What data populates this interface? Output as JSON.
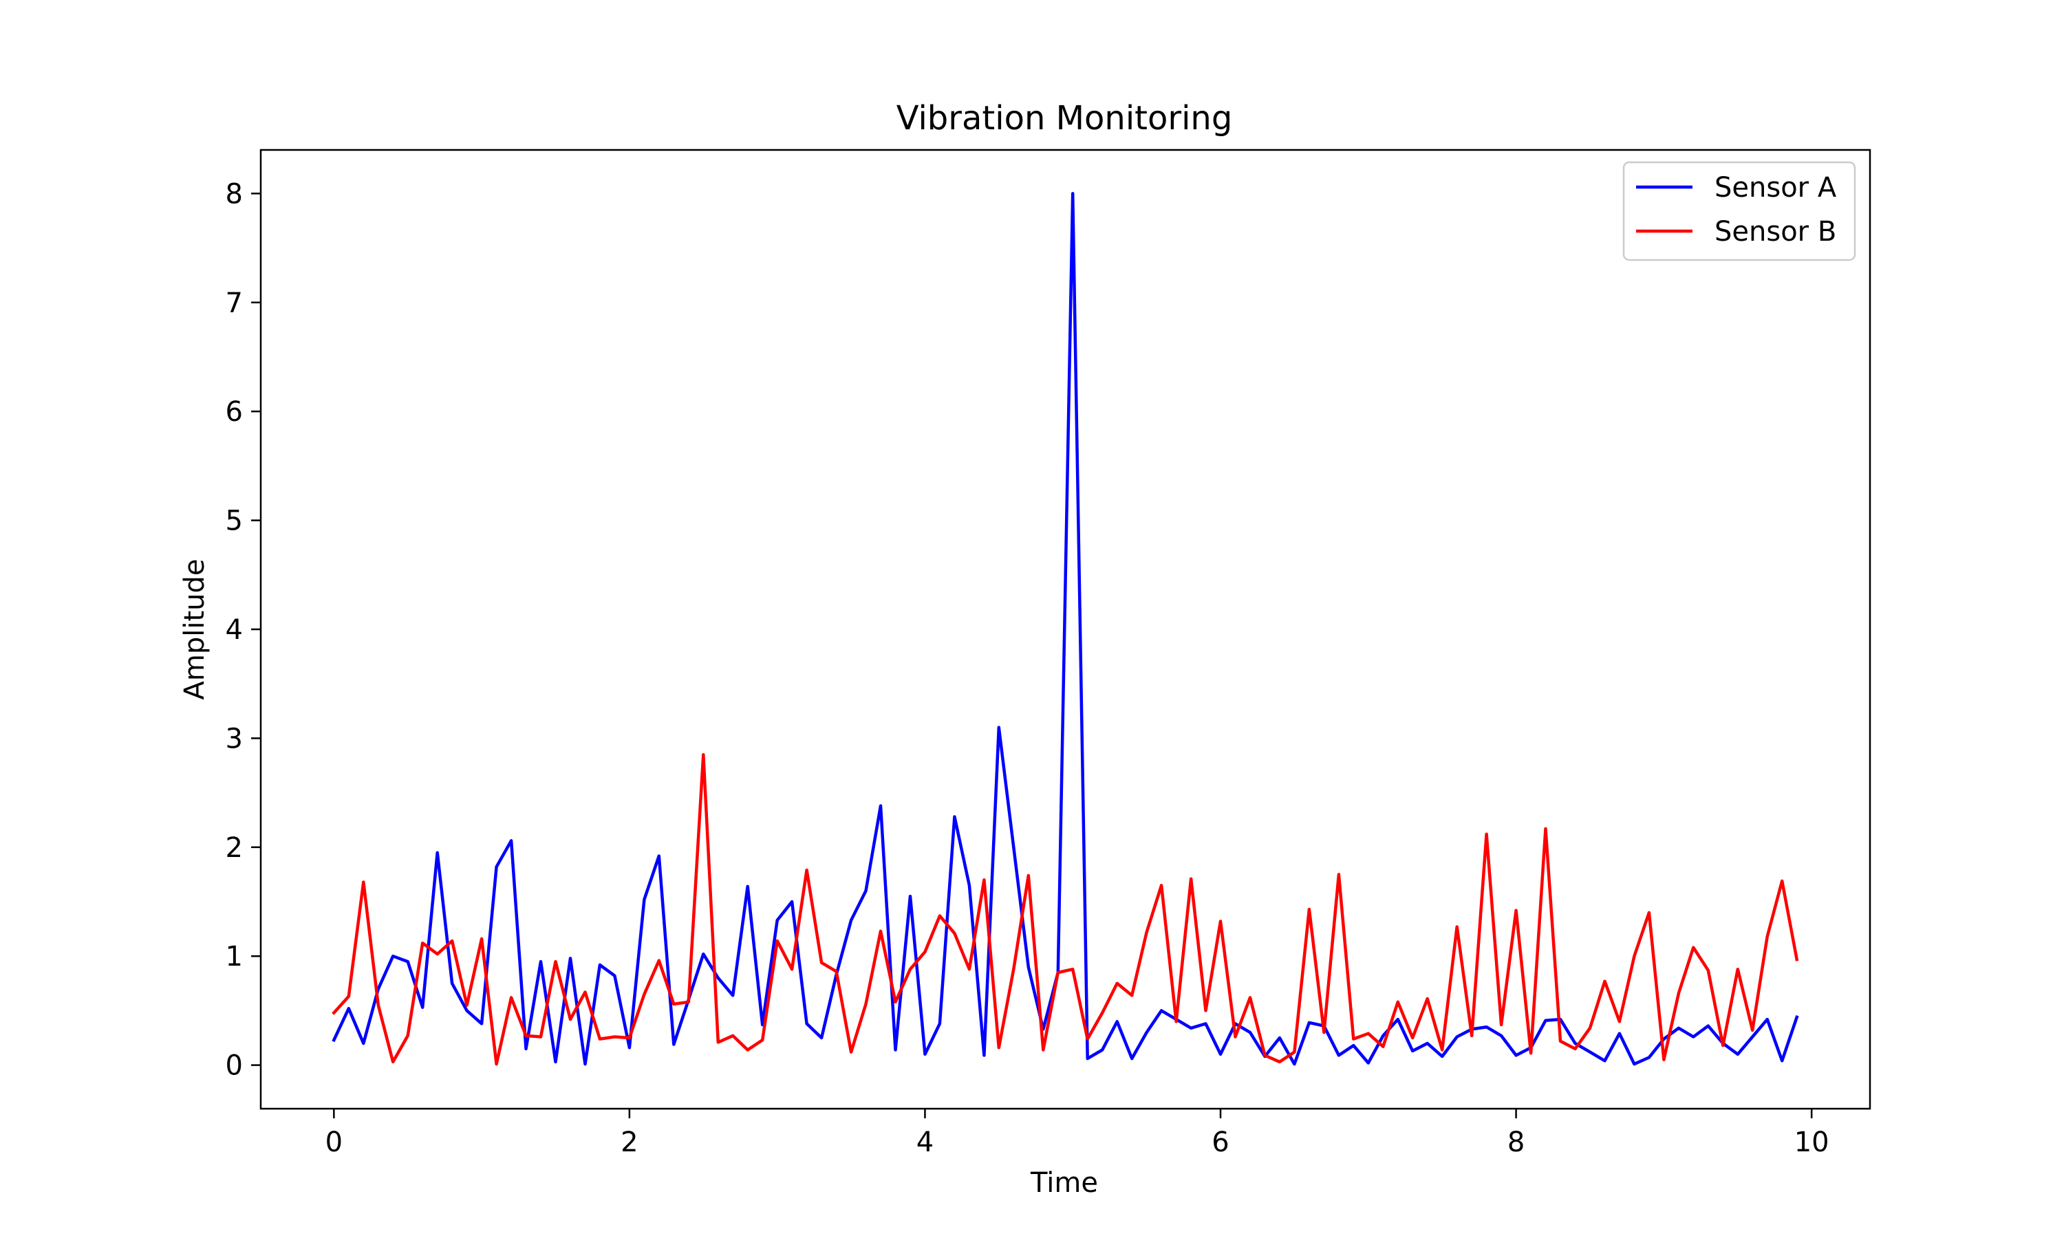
{
  "chart_data": {
    "type": "line",
    "title": "Vibration Monitoring",
    "xlabel": "Time",
    "ylabel": "Amplitude",
    "xlim": [
      -0.495,
      10.395
    ],
    "ylim": [
      -0.4,
      8.4
    ],
    "xticks": [
      0,
      2,
      4,
      6,
      8,
      10
    ],
    "yticks": [
      0,
      1,
      2,
      3,
      4,
      5,
      6,
      7,
      8
    ],
    "grid": false,
    "legend_position": "top-right",
    "x": [
      0.0,
      0.1,
      0.2,
      0.3,
      0.4,
      0.5,
      0.6,
      0.7,
      0.8,
      0.9,
      1.0,
      1.1,
      1.2,
      1.3,
      1.4,
      1.5,
      1.6,
      1.7,
      1.8,
      1.9,
      2.0,
      2.1,
      2.2,
      2.3,
      2.4,
      2.5,
      2.6,
      2.7,
      2.8,
      2.9,
      3.0,
      3.1,
      3.2,
      3.3,
      3.4,
      3.5,
      3.6,
      3.7,
      3.8,
      3.9,
      4.0,
      4.1,
      4.2,
      4.3,
      4.4,
      4.5,
      4.6,
      4.7,
      4.8,
      4.9,
      5.0,
      5.1,
      5.2,
      5.3,
      5.4,
      5.5,
      5.6,
      5.7,
      5.8,
      5.9,
      6.0,
      6.1,
      6.2,
      6.3,
      6.4,
      6.5,
      6.6,
      6.7,
      6.8,
      6.9,
      7.0,
      7.1,
      7.2,
      7.3,
      7.4,
      7.5,
      7.6,
      7.7,
      7.8,
      7.9,
      8.0,
      8.1,
      8.2,
      8.3,
      8.4,
      8.5,
      8.6,
      8.7,
      8.8,
      8.9,
      9.0,
      9.1,
      9.2,
      9.3,
      9.4,
      9.5,
      9.6,
      9.7,
      9.8,
      9.9
    ],
    "series": [
      {
        "name": "Sensor A",
        "color": "#0000ff",
        "values": [
          0.23,
          0.52,
          0.2,
          0.7,
          1.0,
          0.95,
          0.53,
          1.95,
          0.75,
          0.5,
          0.38,
          1.82,
          2.06,
          0.15,
          0.95,
          0.03,
          0.98,
          0.01,
          0.92,
          0.82,
          0.16,
          1.52,
          1.92,
          0.19,
          0.6,
          1.02,
          0.8,
          0.64,
          1.64,
          0.37,
          1.33,
          1.5,
          0.38,
          0.25,
          0.83,
          1.33,
          1.6,
          2.38,
          0.14,
          1.55,
          0.1,
          0.38,
          2.28,
          1.65,
          0.09,
          3.1,
          2.0,
          0.9,
          0.33,
          0.85,
          8.0,
          0.06,
          0.14,
          0.4,
          0.06,
          0.3,
          0.5,
          0.42,
          0.34,
          0.38,
          0.1,
          0.38,
          0.3,
          0.08,
          0.25,
          0.01,
          0.39,
          0.36,
          0.09,
          0.18,
          0.02,
          0.27,
          0.42,
          0.13,
          0.2,
          0.08,
          0.26,
          0.33,
          0.35,
          0.27,
          0.09,
          0.16,
          0.41,
          0.42,
          0.2,
          0.12,
          0.04,
          0.29,
          0.01,
          0.07,
          0.24,
          0.34,
          0.26,
          0.36,
          0.2,
          0.1,
          0.26,
          0.42,
          0.04,
          0.44
        ]
      },
      {
        "name": "Sensor B",
        "color": "#ff0000",
        "values": [
          0.48,
          0.63,
          1.68,
          0.55,
          0.03,
          0.27,
          1.12,
          1.02,
          1.14,
          0.55,
          1.16,
          0.01,
          0.62,
          0.27,
          0.26,
          0.95,
          0.42,
          0.67,
          0.24,
          0.26,
          0.25,
          0.65,
          0.96,
          0.56,
          0.58,
          2.85,
          0.21,
          0.27,
          0.14,
          0.23,
          1.14,
          0.88,
          1.79,
          0.94,
          0.86,
          0.12,
          0.56,
          1.23,
          0.58,
          0.88,
          1.04,
          1.37,
          1.21,
          0.88,
          1.7,
          0.16,
          0.88,
          1.74,
          0.14,
          0.85,
          0.88,
          0.24,
          0.48,
          0.75,
          0.64,
          1.22,
          1.65,
          0.4,
          1.71,
          0.5,
          1.32,
          0.26,
          0.62,
          0.09,
          0.03,
          0.12,
          1.43,
          0.3,
          1.75,
          0.24,
          0.29,
          0.17,
          0.58,
          0.25,
          0.61,
          0.14,
          1.27,
          0.27,
          2.12,
          0.37,
          1.42,
          0.11,
          2.17,
          0.22,
          0.15,
          0.34,
          0.77,
          0.4,
          1.0,
          1.4,
          0.05,
          0.66,
          1.08,
          0.87,
          0.18,
          0.88,
          0.32,
          1.18,
          1.69,
          0.97
        ]
      }
    ]
  }
}
